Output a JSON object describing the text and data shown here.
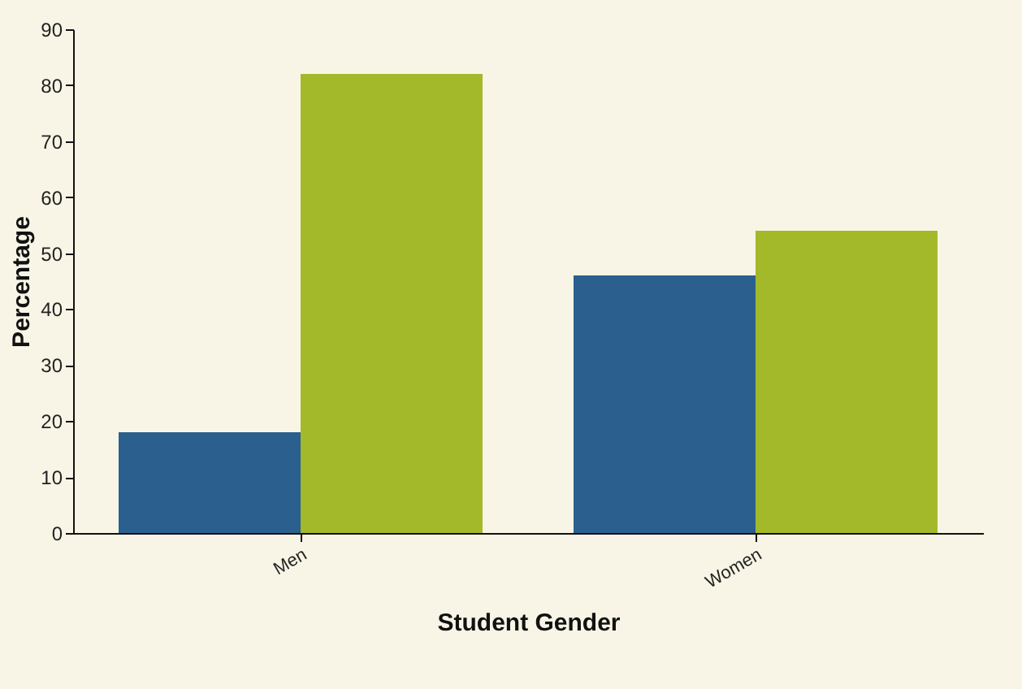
{
  "chart_data": {
    "type": "bar",
    "xlabel": "Student Gender",
    "ylabel": "Percentage",
    "categories": [
      "Men",
      "Women"
    ],
    "series": [
      {
        "color": "#2b5f8e",
        "values": [
          18,
          46
        ]
      },
      {
        "color": "#a3b92a",
        "values": [
          82,
          54
        ]
      }
    ],
    "ylim": [
      0,
      90
    ],
    "yticks": [
      0,
      10,
      20,
      30,
      40,
      50,
      60,
      70,
      80,
      90
    ],
    "grid": false,
    "legend": false
  }
}
